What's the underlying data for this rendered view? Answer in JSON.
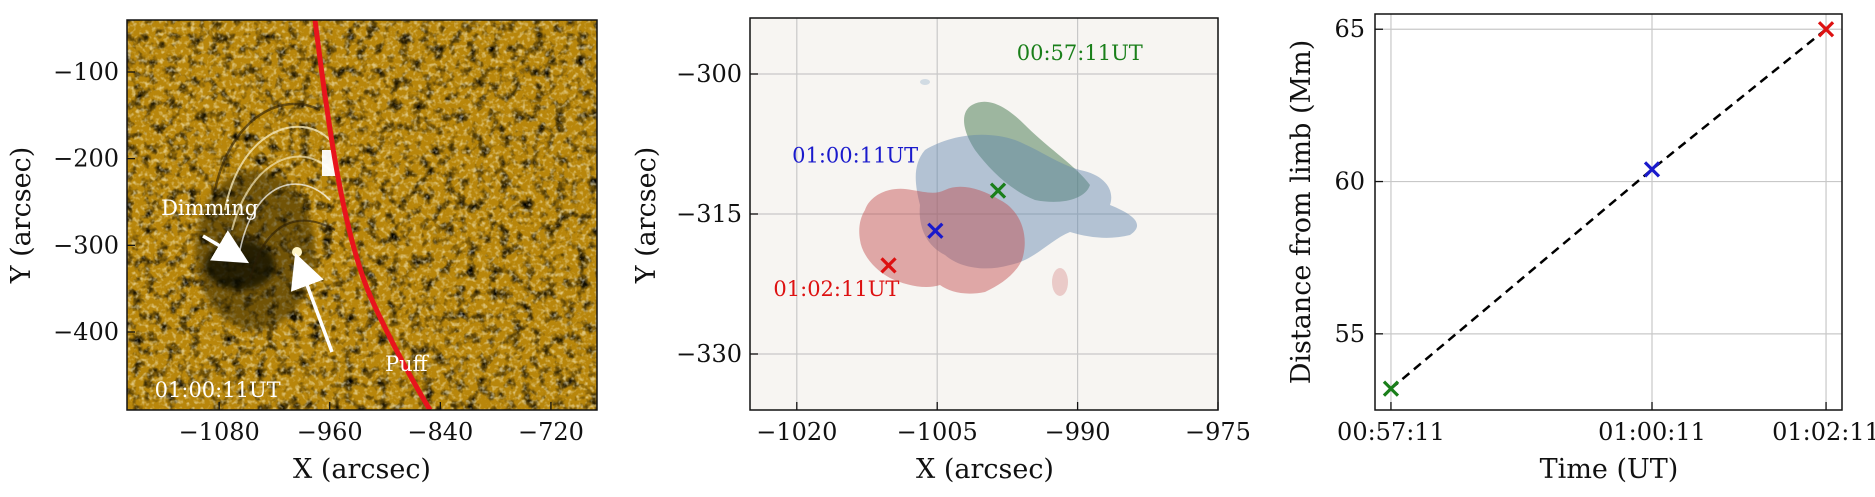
{
  "colors": {
    "green": "#1a7f1a",
    "blue": "#1a1acc",
    "red": "#dd1111",
    "limb": "#e8141c",
    "image_bg": "#b8860b"
  },
  "chart_data": [
    {
      "type": "image",
      "xlabel": "X (arcsec)",
      "ylabel": "Y (arcsec)",
      "xlim": [
        -1180,
        -670
      ],
      "ylim": [
        -490,
        -40
      ],
      "xticks": [
        -1080,
        -960,
        -840,
        -720
      ],
      "yticks": [
        -100,
        -200,
        -300,
        -400
      ],
      "annotations": [
        {
          "text": "Dimming",
          "x": -1143,
          "y": -265
        },
        {
          "text": "Puff",
          "x": -900,
          "y": -445
        },
        {
          "text": "01:00:11UT",
          "x": -1150,
          "y": -475
        }
      ]
    },
    {
      "type": "contour",
      "xlabel": "X (arcsec)",
      "ylabel": "Y (arcsec)",
      "xlim": [
        -1025,
        -975
      ],
      "ylim": [
        -336,
        -294
      ],
      "xticks": [
        -1020,
        -1005,
        -990,
        -975
      ],
      "yticks": [
        -300,
        -315,
        -330
      ],
      "markers": [
        {
          "time": "00:57:11UT",
          "x": -998.5,
          "y": -312.5,
          "color": "green"
        },
        {
          "time": "01:00:11UT",
          "x": -1005.2,
          "y": -316.8,
          "color": "blue"
        },
        {
          "time": "01:02:11UT",
          "x": -1010.2,
          "y": -320.5,
          "color": "red"
        }
      ],
      "labels": [
        {
          "text": "00:57:11UT",
          "x": -996.5,
          "y": -298.5,
          "color": "green"
        },
        {
          "text": "01:00:11UT",
          "x": -1020.5,
          "y": -309.5,
          "color": "blue"
        },
        {
          "text": "01:02:11UT",
          "x": -1022.5,
          "y": -323.8,
          "color": "red"
        }
      ]
    },
    {
      "type": "line",
      "xlabel": "Time (UT)",
      "ylabel": "Distance from limb (Mm)",
      "categories": [
        "00:57:11",
        "01:00:11",
        "01:02:11"
      ],
      "x": [
        0,
        180,
        300
      ],
      "values": [
        53.2,
        60.4,
        65.0
      ],
      "marker_colors": [
        "green",
        "blue",
        "red"
      ],
      "ylim": [
        52.5,
        65.5
      ],
      "yticks": [
        55,
        60,
        65
      ]
    }
  ]
}
